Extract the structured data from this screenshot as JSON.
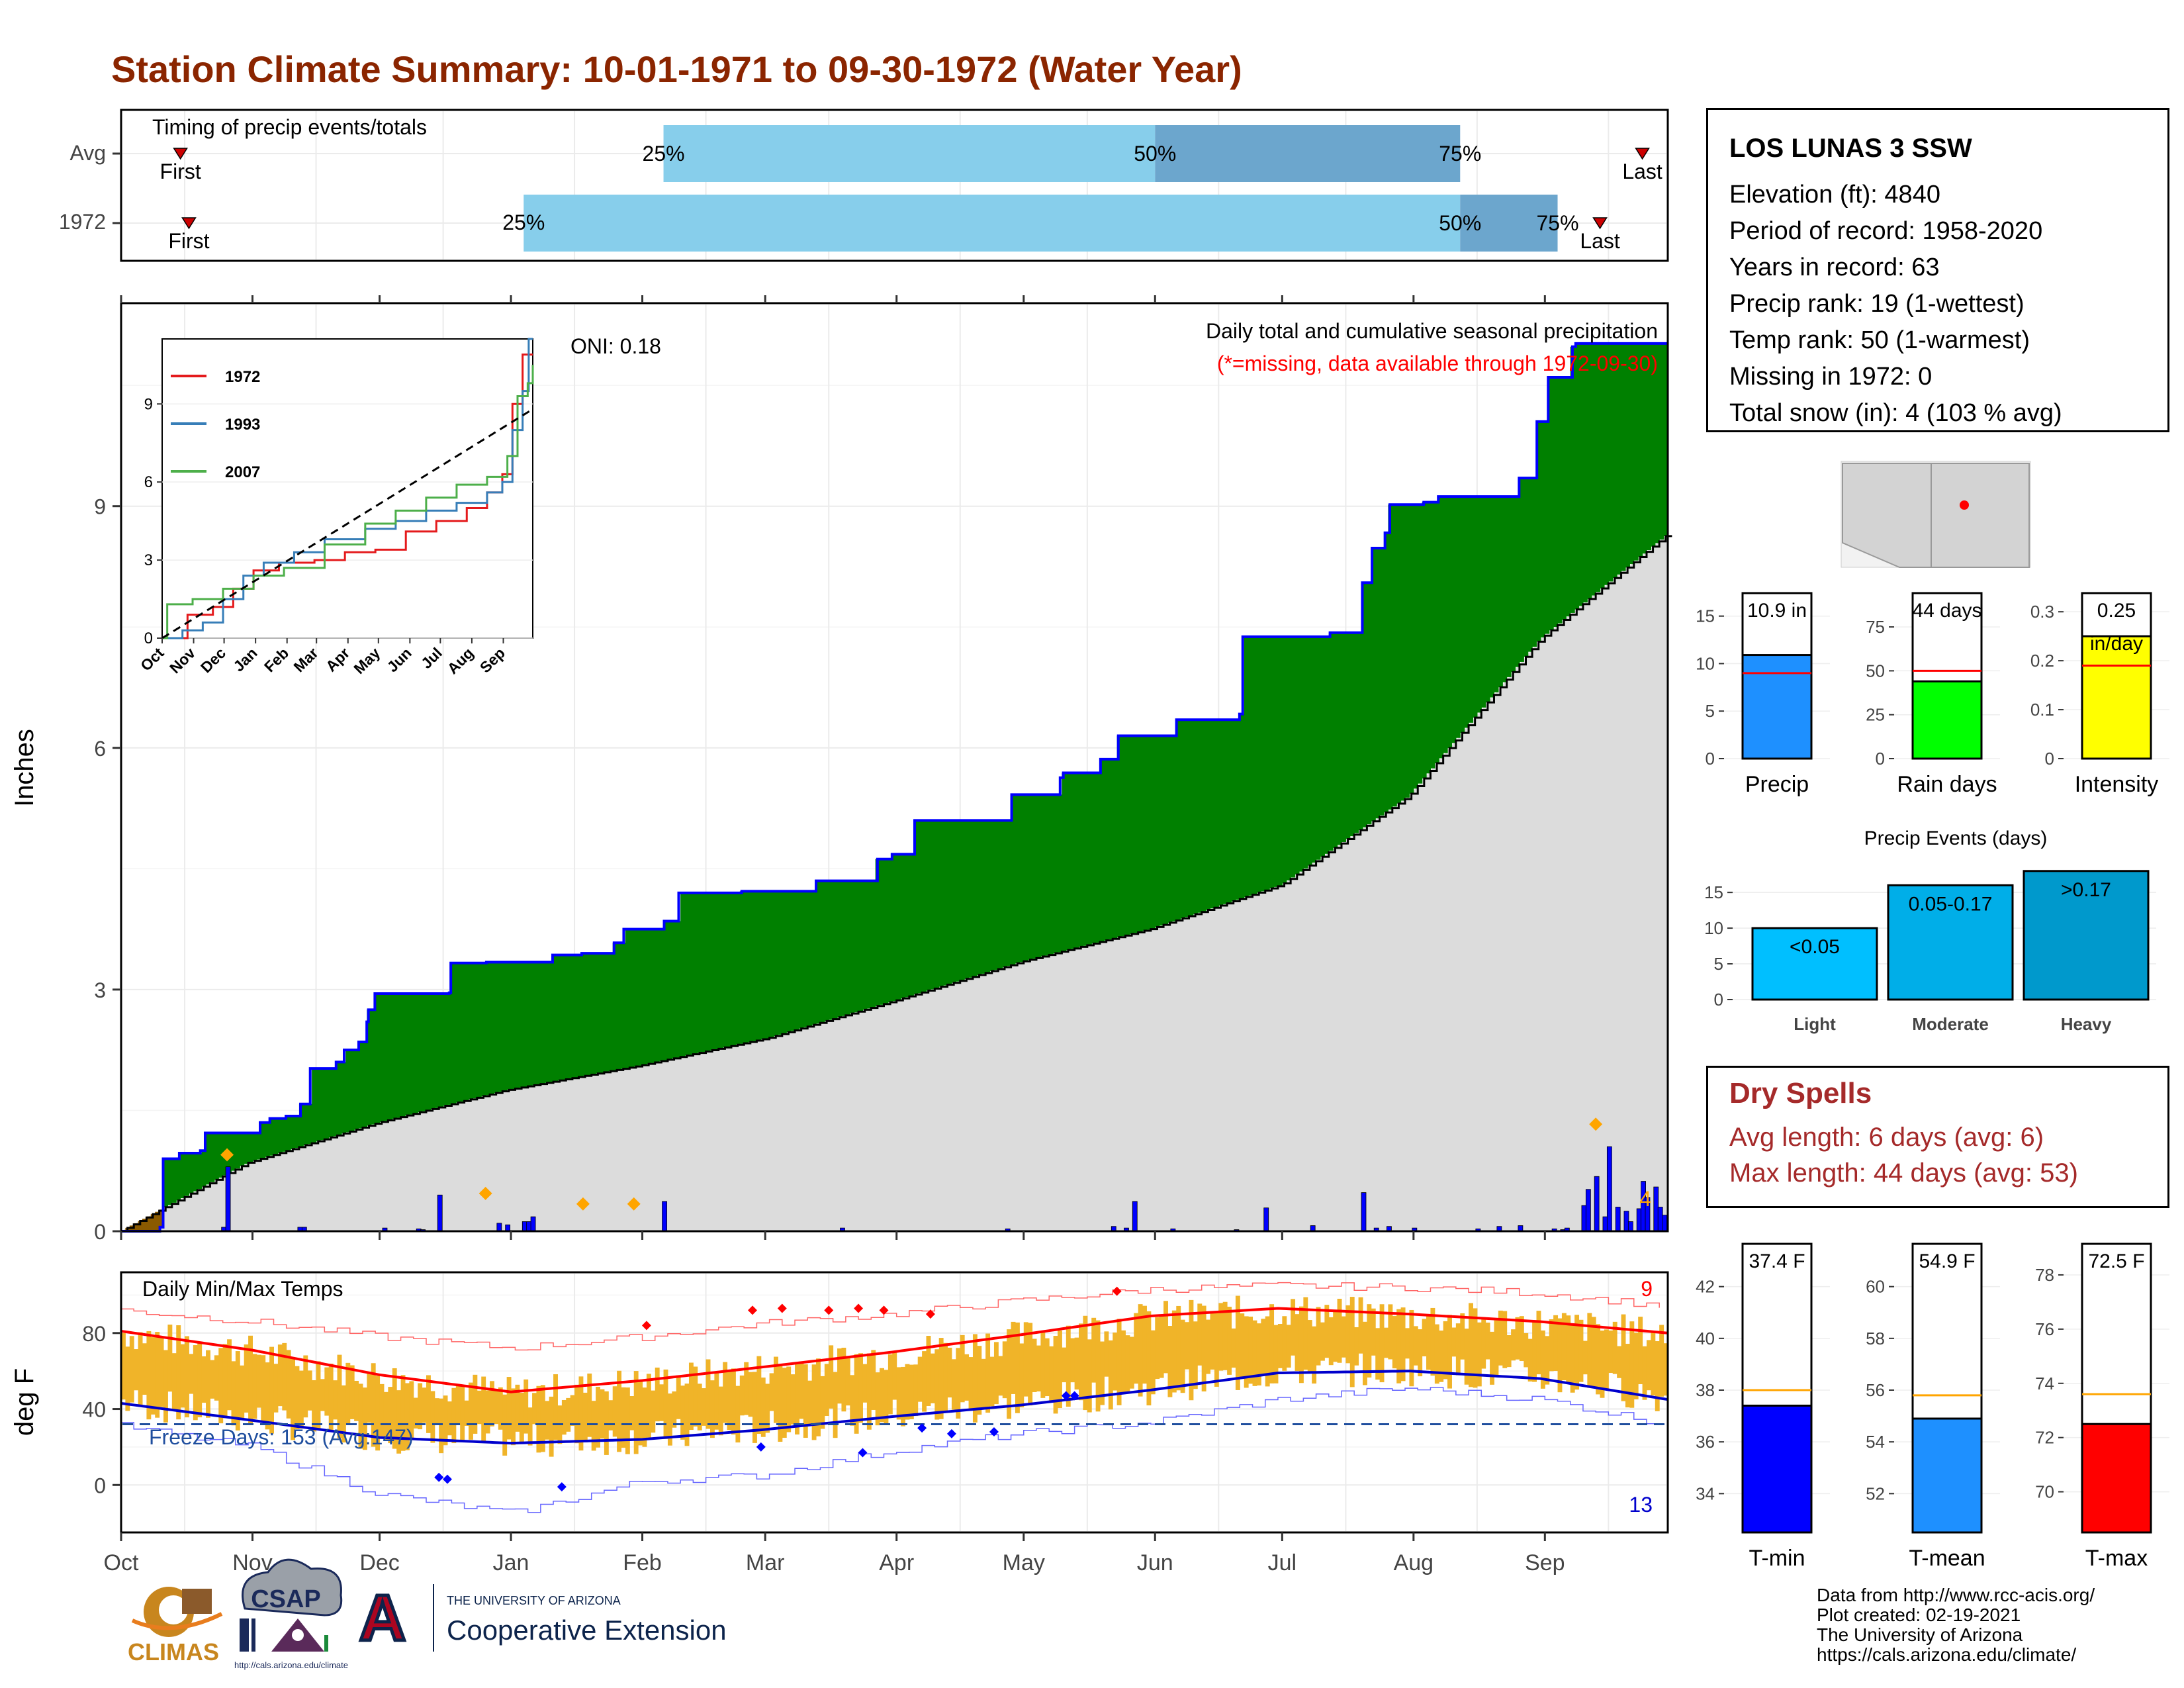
{
  "page": {
    "title": "Station Climate Summary: 10-01-1971 to 09-30-1972 (Water Year)"
  },
  "timing_panel": {
    "title": "Timing of precip events/totals",
    "rows": [
      {
        "label": "Avg",
        "first_label": "First",
        "last_label": "Last",
        "first_day": 14,
        "last_day": 359,
        "p25_day": 128,
        "p50_day": 244,
        "p75_day": 316,
        "p25_label": "25%",
        "p50_label": "50%",
        "p75_label": "75%"
      },
      {
        "label": "1972",
        "first_label": "First",
        "last_label": "Last",
        "first_day": 16,
        "last_day": 349,
        "p25_day": 95,
        "p50_day": 316,
        "p75_day": 339,
        "p25_label": "25%",
        "p50_label": "50%",
        "p75_label": "75%"
      }
    ],
    "colors": {
      "light": "#87CEEB",
      "dark": "#6CA6CD",
      "marker": "#CC0000"
    }
  },
  "station": {
    "name": "LOS LUNAS 3 SSW",
    "rows": [
      "Elevation (ft): 4840",
      "Period of record: 1958-2020",
      "Years in record: 63",
      "Precip rank: 19 (1-wettest)",
      "Temp rank: 50 (1-warmest)",
      "Missing in 1972: 0",
      "Total snow (in): 4 (103 % avg)"
    ]
  },
  "map": {
    "state_fill": "#d3d3d3",
    "station_color": "#ff0000"
  },
  "precip_panel": {
    "ylabel": "Inches",
    "header": "Daily total and cumulative seasonal precipitation",
    "subheader": "(*=missing, data available through 1972-09-30)",
    "oni": "ONI: 0.18",
    "snow_label": "4",
    "month_ticks": [
      "Oct",
      "Nov",
      "Dec",
      "Jan",
      "Feb",
      "Mar",
      "Apr",
      "May",
      "Jun",
      "Jul",
      "Aug",
      "Sep"
    ],
    "colors": {
      "above": "#008000",
      "below": "#8B5A00",
      "normal": "#dcdcdc",
      "line": "#0000ff",
      "daily": "#0000ff",
      "snow": "#FFA500"
    }
  },
  "chart_data": [
    {
      "type": "line",
      "title": "Daily total and cumulative seasonal precipitation",
      "ylabel": "Inches",
      "ylim": [
        0,
        11.5
      ],
      "x_unit": "day of water year (Oct 1 = 0)",
      "yticks": [
        0,
        3,
        6,
        9
      ],
      "series": [
        {
          "role": "cumulative_1972",
          "steps": [
            [
              0,
              0
            ],
            [
              24,
              0.05
            ],
            [
              26,
              0.9
            ],
            [
              36,
              0.97
            ],
            [
              49,
              1.0
            ],
            [
              52,
              1.22
            ],
            [
              86,
              1.35
            ],
            [
              92,
              1.4
            ],
            [
              102,
              1.43
            ],
            [
              111,
              1.58
            ],
            [
              117,
              2.02
            ],
            [
              133,
              2.1
            ],
            [
              138,
              2.25
            ],
            [
              147,
              2.35
            ],
            [
              152,
              2.6
            ],
            [
              153,
              2.75
            ],
            [
              157,
              2.95
            ],
            [
              203,
              2.96
            ],
            [
              204,
              3.33
            ],
            [
              226,
              3.34
            ],
            [
              267,
              3.43
            ],
            [
              285,
              3.45
            ],
            [
              305,
              3.58
            ],
            [
              311,
              3.75
            ],
            [
              336,
              3.85
            ],
            [
              345,
              4.2
            ],
            [
              384,
              4.22
            ],
            [
              430,
              4.35
            ],
            [
              468,
              4.62
            ],
            [
              477,
              4.68
            ],
            [
              491,
              5.1
            ],
            [
              551,
              5.42
            ],
            [
              581,
              5.63
            ],
            [
              583,
              5.69
            ],
            [
              606,
              5.86
            ],
            [
              617,
              6.15
            ],
            [
              653,
              6.35
            ],
            [
              692,
              6.42
            ],
            [
              694,
              7.38
            ],
            [
              748,
              7.43
            ],
            [
              768,
              8.05
            ],
            [
              774,
              8.48
            ],
            [
              782,
              8.67
            ],
            [
              785,
              9.02
            ],
            [
              806,
              9.05
            ],
            [
              815,
              9.12
            ],
            [
              865,
              9.35
            ],
            [
              876,
              10.05
            ],
            [
              883,
              10.6
            ],
            [
              898,
              10.98
            ],
            [
              900,
              11.02
            ],
            [
              957,
              11.02
            ]
          ],
          "note": "x values in this series are screen-independent indices mapped linearly to days by the script"
        },
        {
          "role": "normal_cumulative",
          "days": [
            0,
            30,
            61,
            91,
            122,
            153,
            182,
            213,
            243,
            274,
            304,
            335,
            365
          ],
          "values": [
            0,
            0.85,
            1.35,
            1.75,
            2.05,
            2.4,
            2.85,
            3.35,
            3.75,
            4.3,
            5.4,
            7.35,
            8.65
          ]
        }
      ],
      "daily_precip": [
        [
          24,
          0.05
        ],
        [
          25,
          0.8
        ],
        [
          42,
          0.05
        ],
        [
          43,
          0.05
        ],
        [
          62,
          0.04
        ],
        [
          70,
          0.03
        ],
        [
          71,
          0.02
        ],
        [
          75,
          0.45
        ],
        [
          89,
          0.1
        ],
        [
          91,
          0.08
        ],
        [
          95,
          0.12
        ],
        [
          96,
          0.12
        ],
        [
          97,
          0.18
        ],
        [
          128,
          0.37
        ],
        [
          170,
          0.04
        ],
        [
          209,
          0.03
        ],
        [
          234,
          0.06
        ],
        [
          237,
          0.04
        ],
        [
          239,
          0.37
        ],
        [
          248,
          0.03
        ],
        [
          263,
          0.02
        ],
        [
          270,
          0.29
        ],
        [
          281,
          0.07
        ],
        [
          293,
          0.48
        ],
        [
          296,
          0.04
        ],
        [
          299,
          0.06
        ],
        [
          305,
          0.04
        ],
        [
          320,
          0.03
        ],
        [
          325,
          0.06
        ],
        [
          330,
          0.07
        ],
        [
          338,
          0.03
        ],
        [
          340,
          0.02
        ],
        [
          341,
          0.04
        ],
        [
          345,
          0.32
        ],
        [
          346,
          0.52
        ],
        [
          348,
          0.68
        ],
        [
          350,
          0.18
        ],
        [
          351,
          1.05
        ],
        [
          353,
          0.3
        ],
        [
          355,
          0.25
        ],
        [
          356,
          0.12
        ],
        [
          358,
          0.28
        ],
        [
          359,
          0.62
        ],
        [
          360,
          0.42
        ],
        [
          362,
          0.55
        ],
        [
          363,
          0.3
        ],
        [
          364,
          0.2
        ]
      ]
    },
    {
      "type": "line",
      "title": "Daily Min/Max Temps",
      "ylabel": "deg F",
      "ylim": [
        -25,
        112
      ],
      "yticks": [
        0,
        40,
        80
      ],
      "freeze_label": "Freeze Days: 153 (Avg:147)",
      "freeze_line": 32,
      "max_days_label": "9",
      "min_days_label": "13",
      "normal_max": {
        "days": [
          0,
          31,
          61,
          92,
          123,
          151,
          182,
          212,
          243,
          273,
          304,
          335,
          365
        ],
        "values": [
          81,
          71,
          58,
          49,
          55,
          62,
          70,
          79,
          89,
          93,
          90,
          86,
          80
        ]
      },
      "normal_min": {
        "days": [
          0,
          31,
          61,
          92,
          123,
          151,
          182,
          212,
          243,
          273,
          304,
          335,
          365
        ],
        "values": [
          43,
          34,
          25,
          22,
          24,
          29,
          36,
          42,
          50,
          59,
          60,
          56,
          45
        ]
      },
      "record_max": {
        "days": [
          0,
          31,
          61,
          92,
          123,
          151,
          182,
          212,
          243,
          273,
          304,
          335,
          365
        ],
        "values": [
          92,
          86,
          78,
          72,
          78,
          85,
          90,
          97,
          103,
          105,
          104,
          101,
          94
        ]
      },
      "record_min": {
        "days": [
          0,
          31,
          61,
          92,
          123,
          151,
          182,
          212,
          243,
          273,
          304,
          335,
          365
        ],
        "values": [
          31,
          20,
          -5,
          -15,
          2,
          5,
          18,
          27,
          33,
          45,
          51,
          45,
          32
        ]
      }
    },
    {
      "type": "line",
      "title": "",
      "inset": true,
      "ylim": [
        0,
        11.5
      ],
      "yticks": [
        0,
        3,
        6,
        9
      ],
      "months": [
        "Oct",
        "Nov",
        "Dec",
        "Jan",
        "Feb",
        "Mar",
        "Apr",
        "May",
        "Jun",
        "Jul",
        "Aug",
        "Sep"
      ],
      "series": [
        {
          "name": "1972",
          "color": "#e41a1c",
          "days": [
            0,
            25,
            50,
            70,
            90,
            115,
            150,
            180,
            210,
            240,
            270,
            300,
            320,
            335,
            345,
            355,
            365
          ],
          "values": [
            0,
            0.9,
            1.2,
            1.9,
            2.6,
            2.9,
            3.0,
            3.3,
            3.4,
            4.1,
            4.5,
            5.0,
            5.6,
            6.3,
            9.0,
            10.9,
            10.9
          ]
        },
        {
          "name": "1993",
          "color": "#377eb8",
          "days": [
            0,
            20,
            40,
            60,
            80,
            100,
            130,
            160,
            200,
            230,
            260,
            290,
            320,
            335,
            345,
            355,
            361,
            365
          ],
          "values": [
            0,
            0.3,
            0.6,
            1.5,
            2.4,
            2.9,
            3.3,
            3.8,
            4.2,
            4.5,
            4.9,
            5.2,
            5.6,
            6.0,
            8.0,
            9.5,
            11.5,
            11.5
          ]
        },
        {
          "name": "2007",
          "color": "#4daf4a",
          "days": [
            0,
            5,
            30,
            60,
            90,
            120,
            160,
            200,
            230,
            260,
            290,
            320,
            340,
            350,
            360,
            365
          ],
          "values": [
            0,
            1.3,
            1.5,
            1.9,
            2.4,
            2.7,
            3.6,
            4.4,
            4.9,
            5.4,
            5.9,
            6.2,
            7.0,
            9.3,
            9.8,
            10.5
          ]
        },
        {
          "name": "normal",
          "color": "#000000",
          "dashed": true,
          "days": [
            0,
            365
          ],
          "values": [
            0,
            8.8
          ]
        }
      ]
    },
    {
      "type": "bar",
      "title": "",
      "categories": [
        "Precip",
        "Rain days",
        "Intensity"
      ],
      "values": [
        10.9,
        44,
        0.25
      ],
      "value_labels": [
        "10.9 in",
        "44 days",
        "0.25"
      ],
      "intensity_unit": "in/day",
      "averages": [
        9.0,
        50,
        0.19
      ],
      "ylims": [
        [
          0,
          17
        ],
        [
          0,
          92
        ],
        [
          0,
          0.33
        ]
      ],
      "yticks": [
        [
          0,
          5,
          10,
          15
        ],
        [
          0,
          25,
          50,
          75
        ],
        [
          0.0,
          0.1,
          0.2,
          0.3
        ]
      ],
      "colors": [
        "#1E90FF",
        "#00FF00",
        "#FFFF00"
      ]
    },
    {
      "type": "bar",
      "title": "Precip Events (days)",
      "categories": [
        "Light",
        "Moderate",
        "Heavy"
      ],
      "value_labels": [
        "<0.05",
        "0.05-0.17",
        ">0.17"
      ],
      "values": [
        10,
        16,
        18
      ],
      "ylim": [
        0,
        19
      ],
      "yticks": [
        0,
        5,
        10,
        15
      ],
      "colors": [
        "#00BFFF",
        "#00AEE8",
        "#0099CC"
      ]
    },
    {
      "type": "bar",
      "title": "",
      "categories": [
        "T-min",
        "T-mean",
        "T-max"
      ],
      "values": [
        37.4,
        54.9,
        72.5
      ],
      "value_labels": [
        "37.4 F",
        "54.9 F",
        "72.5 F"
      ],
      "averages": [
        38.0,
        55.8,
        73.6
      ],
      "ylims": [
        [
          32.5,
          43.5
        ],
        [
          50.5,
          61.5
        ],
        [
          68.5,
          79
        ]
      ],
      "yticks": [
        [
          34,
          36,
          38,
          40,
          42
        ],
        [
          52,
          54,
          56,
          58,
          60
        ],
        [
          70,
          72,
          74,
          76,
          78
        ]
      ],
      "colors": [
        "#0000FF",
        "#1E90FF",
        "#FF0000"
      ]
    }
  ],
  "dry_spells": {
    "title": "Dry Spells",
    "avg_length": "Avg length: 6 days (avg: 6)",
    "max_length": "Max length: 44 days (avg: 53)"
  },
  "credits": {
    "line1": "Data from http://www.rcc-acis.org/",
    "line2": "Plot created: 02-19-2021",
    "line3": "The University of Arizona",
    "line4": "https://cals.arizona.edu/climate/"
  },
  "logos": {
    "climas": "CLIMAS",
    "csap": "CSAP",
    "csap_url": "http://cals.arizona.edu/climate",
    "ua_small": "THE UNIVERSITY OF ARIZONA",
    "ua_big": "Cooperative Extension",
    "ua_letter": "A"
  }
}
